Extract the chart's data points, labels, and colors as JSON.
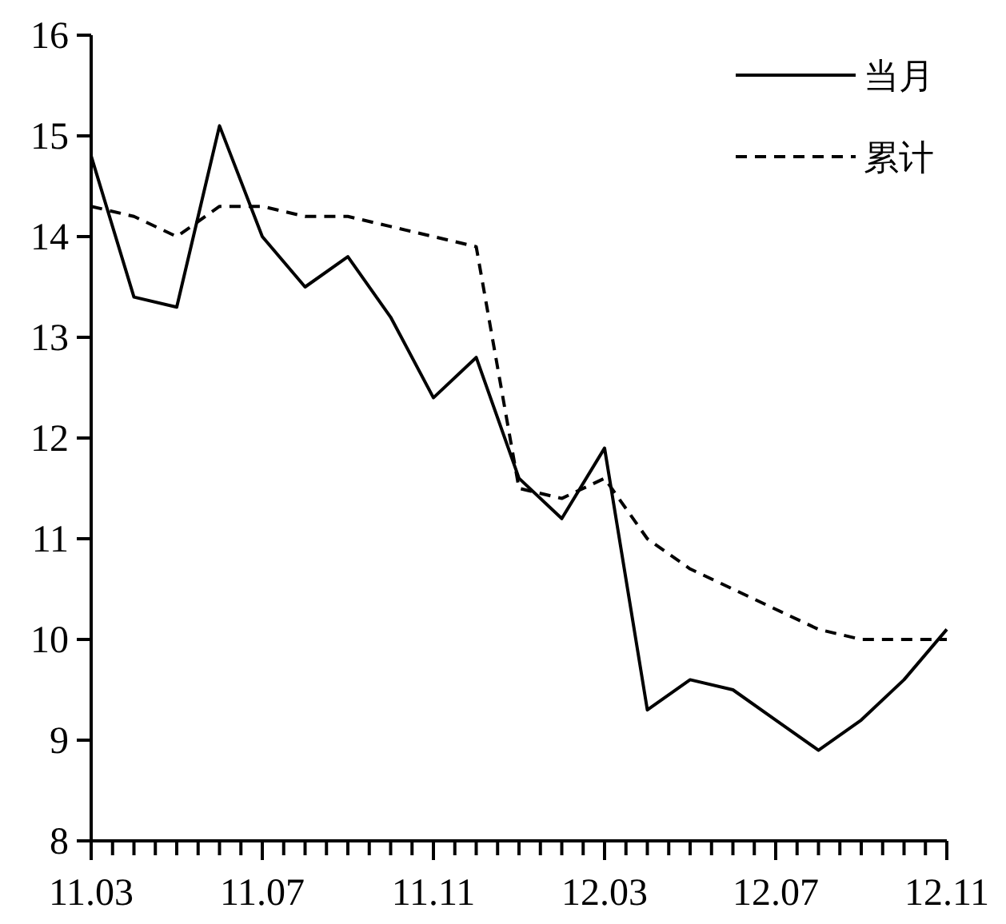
{
  "chart_data": {
    "type": "line",
    "categories": [
      "11.03",
      null,
      null,
      null,
      "11.07",
      null,
      null,
      null,
      "11.11",
      null,
      null,
      null,
      "12.03",
      null,
      null,
      null,
      "12.07",
      null,
      null,
      null,
      "12.11"
    ],
    "series": [
      {
        "name": "当月",
        "color": "#000000",
        "line_style": "solid",
        "values": [
          14.8,
          13.4,
          13.3,
          15.1,
          14.0,
          13.5,
          13.8,
          13.2,
          12.4,
          12.8,
          11.6,
          11.2,
          11.9,
          9.3,
          9.6,
          9.5,
          9.2,
          8.9,
          9.2,
          9.6,
          10.1
        ]
      },
      {
        "name": "累计",
        "color": "#000000",
        "line_style": "dashed",
        "values": [
          14.3,
          14.2,
          14.0,
          14.3,
          14.3,
          14.2,
          14.2,
          14.1,
          14.0,
          13.9,
          11.5,
          11.4,
          11.6,
          11.0,
          10.7,
          10.5,
          10.3,
          10.1,
          10.0,
          10.0,
          10.0
        ]
      }
    ],
    "ylim": [
      8,
      16
    ],
    "yticks": [
      8,
      9,
      10,
      11,
      12,
      13,
      14,
      15,
      16
    ],
    "legend": "top right"
  }
}
